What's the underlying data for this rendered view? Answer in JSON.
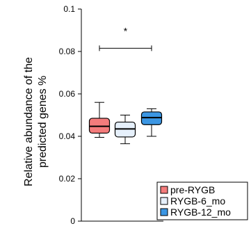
{
  "chart_data": {
    "type": "box",
    "ylabel_line1": "Relative abundance of the",
    "ylabel_line2": "predicted genes %",
    "ylim": [
      0,
      0.1
    ],
    "yticks": [
      "0",
      "0.02",
      "0.04",
      "0.06",
      "0.08",
      "0.1"
    ],
    "ytick_values": [
      0,
      0.02,
      0.04,
      0.06,
      0.08,
      0.1
    ],
    "series": [
      {
        "name": "pre-RYGB",
        "color": "#f47c7c",
        "min": 0.0395,
        "q1": 0.0415,
        "median": 0.0447,
        "q3": 0.0485,
        "max": 0.056
      },
      {
        "name": "RYGB-6_mo",
        "color": "#e6f0fb",
        "min": 0.0365,
        "q1": 0.0397,
        "median": 0.0435,
        "q3": 0.0467,
        "max": 0.05
      },
      {
        "name": "RYGB-12_mo",
        "color": "#3b96e3",
        "min": 0.04,
        "q1": 0.0455,
        "median": 0.0488,
        "q3": 0.0515,
        "max": 0.053
      }
    ],
    "significance": {
      "label": "*",
      "y": 0.0815,
      "from": 0,
      "to": 2
    },
    "legend_position": "bottom-right"
  }
}
